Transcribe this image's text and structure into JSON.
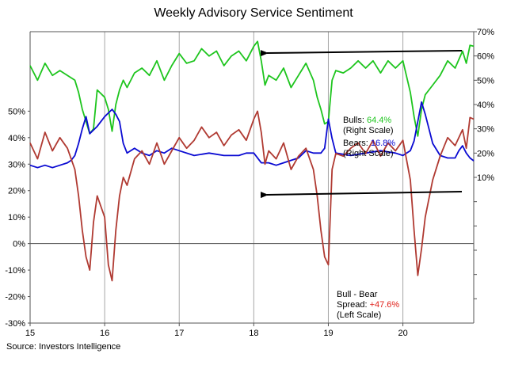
{
  "title": "Weekly Advisory Service Sentiment",
  "source": "Source: Investors Intelligence",
  "colors": {
    "bulls": "#1ec51e",
    "bears": "#0a0ad2",
    "spread": "#b03a32",
    "arrow": "#000000",
    "grid": "#a6a6a6"
  },
  "annotations": {
    "bulls_label": "Bulls: ",
    "bulls_value": "64.4%",
    "bulls_scale": "(Right Scale)",
    "bears_label": "Bears: ",
    "bears_value": "16.8%",
    "bears_scale": "(Right Scale)",
    "spread_label": "Bull - Bear",
    "spread_prefix": "Spread: ",
    "spread_value": "+47.6%",
    "spread_scale": "(Left Scale)"
  },
  "chart_data": {
    "type": "line",
    "x_ticks": [
      "15",
      "16",
      "17",
      "18",
      "19",
      "20"
    ],
    "xlim": [
      2015,
      2020.95
    ],
    "right_axis": {
      "ylim": [
        -50,
        70
      ],
      "ticks": [
        "10%",
        "20%",
        "30%",
        "40%",
        "50%",
        "60%",
        "70%"
      ],
      "tick_values": [
        10,
        20,
        30,
        40,
        50,
        60,
        70
      ]
    },
    "left_axis": {
      "ylim": [
        -30,
        80
      ],
      "ticks": [
        "-30%",
        "-20%",
        "-10%",
        "0%",
        "10%",
        "20%",
        "30%",
        "40%",
        "50%"
      ],
      "tick_values": [
        -30,
        -20,
        -10,
        0,
        10,
        20,
        30,
        40,
        50
      ]
    },
    "series": [
      {
        "name": "Bulls",
        "axis": "right",
        "x": [
          2015.0,
          2015.1,
          2015.2,
          2015.3,
          2015.4,
          2015.5,
          2015.6,
          2015.65,
          2015.7,
          2015.8,
          2015.85,
          2015.9,
          2016.0,
          2016.05,
          2016.1,
          2016.15,
          2016.2,
          2016.25,
          2016.3,
          2016.4,
          2016.5,
          2016.6,
          2016.7,
          2016.8,
          2016.9,
          2017.0,
          2017.1,
          2017.2,
          2017.3,
          2017.4,
          2017.5,
          2017.6,
          2017.7,
          2017.8,
          2017.9,
          2018.0,
          2018.05,
          2018.1,
          2018.15,
          2018.2,
          2018.3,
          2018.4,
          2018.5,
          2018.6,
          2018.7,
          2018.8,
          2018.85,
          2018.9,
          2018.95,
          2019.0,
          2019.05,
          2019.1,
          2019.2,
          2019.3,
          2019.4,
          2019.5,
          2019.6,
          2019.7,
          2019.8,
          2019.9,
          2020.0,
          2020.1,
          2020.15,
          2020.2,
          2020.25,
          2020.3,
          2020.4,
          2020.5,
          2020.6,
          2020.7,
          2020.8,
          2020.85,
          2020.9,
          2020.95
        ],
        "values": [
          56,
          50,
          57,
          52,
          54,
          52,
          50,
          45,
          38,
          28,
          30,
          46,
          43,
          38,
          29,
          40,
          46,
          50,
          47,
          53,
          55,
          52,
          58,
          50,
          56,
          61,
          57,
          58,
          63,
          60,
          62,
          56,
          60,
          62,
          58,
          64,
          66,
          58,
          48,
          52,
          50,
          55,
          47,
          52,
          57,
          50,
          43,
          38,
          32,
          33,
          50,
          54,
          53,
          55,
          58,
          55,
          58,
          53,
          58,
          55,
          58,
          45,
          35,
          27,
          38,
          44,
          48,
          52,
          58,
          55,
          62,
          57,
          64.4,
          64
        ]
      },
      {
        "name": "Bears",
        "axis": "right",
        "x": [
          2015.0,
          2015.1,
          2015.2,
          2015.3,
          2015.4,
          2015.5,
          2015.55,
          2015.6,
          2015.65,
          2015.7,
          2015.75,
          2015.8,
          2015.9,
          2016.0,
          2016.1,
          2016.15,
          2016.2,
          2016.25,
          2016.3,
          2016.35,
          2016.4,
          2016.5,
          2016.6,
          2016.7,
          2016.8,
          2016.9,
          2017.0,
          2017.2,
          2017.4,
          2017.6,
          2017.8,
          2017.9,
          2018.0,
          2018.1,
          2018.2,
          2018.3,
          2018.4,
          2018.5,
          2018.6,
          2018.7,
          2018.8,
          2018.9,
          2018.95,
          2019.0,
          2019.05,
          2019.1,
          2019.3,
          2019.5,
          2019.7,
          2019.9,
          2020.0,
          2020.1,
          2020.15,
          2020.2,
          2020.25,
          2020.3,
          2020.35,
          2020.4,
          2020.5,
          2020.6,
          2020.7,
          2020.75,
          2020.8,
          2020.85,
          2020.9,
          2020.95
        ],
        "values": [
          15,
          14,
          15,
          14,
          15,
          16,
          17,
          19,
          24,
          30,
          35,
          28,
          31,
          35,
          38,
          36,
          33,
          24,
          20,
          21,
          22,
          20,
          19,
          21,
          20,
          22,
          21,
          19,
          20,
          19,
          19,
          20,
          20,
          16,
          16,
          15,
          16,
          17,
          18,
          21,
          20,
          20,
          22,
          34,
          26,
          20,
          19,
          20,
          21,
          20,
          19,
          21,
          25,
          33,
          41,
          36,
          30,
          24,
          19,
          18,
          18,
          21,
          23,
          20,
          18,
          16.8
        ]
      },
      {
        "name": "Bull - Bear Spread",
        "axis": "left",
        "x": [
          2015.0,
          2015.1,
          2015.2,
          2015.3,
          2015.4,
          2015.5,
          2015.6,
          2015.65,
          2015.7,
          2015.75,
          2015.8,
          2015.85,
          2015.9,
          2016.0,
          2016.05,
          2016.1,
          2016.15,
          2016.2,
          2016.25,
          2016.3,
          2016.4,
          2016.5,
          2016.6,
          2016.7,
          2016.8,
          2016.9,
          2017.0,
          2017.1,
          2017.2,
          2017.3,
          2017.4,
          2017.5,
          2017.6,
          2017.7,
          2017.8,
          2017.9,
          2018.0,
          2018.05,
          2018.1,
          2018.15,
          2018.2,
          2018.3,
          2018.4,
          2018.5,
          2018.6,
          2018.7,
          2018.8,
          2018.85,
          2018.9,
          2018.95,
          2019.0,
          2019.05,
          2019.1,
          2019.2,
          2019.3,
          2019.4,
          2019.5,
          2019.6,
          2019.7,
          2019.8,
          2019.9,
          2020.0,
          2020.1,
          2020.15,
          2020.2,
          2020.25,
          2020.3,
          2020.4,
          2020.5,
          2020.6,
          2020.7,
          2020.8,
          2020.85,
          2020.9,
          2020.95
        ],
        "values": [
          38,
          32,
          42,
          35,
          40,
          36,
          28,
          18,
          5,
          -5,
          -10,
          8,
          18,
          10,
          -8,
          -14,
          5,
          18,
          25,
          22,
          32,
          35,
          30,
          38,
          30,
          35,
          40,
          36,
          39,
          44,
          40,
          42,
          37,
          41,
          43,
          39,
          47,
          50,
          42,
          30,
          35,
          32,
          38,
          28,
          33,
          36,
          28,
          18,
          5,
          -5,
          -8,
          28,
          34,
          33,
          36,
          38,
          34,
          39,
          33,
          38,
          35,
          39,
          24,
          5,
          -12,
          -2,
          10,
          24,
          33,
          40,
          37,
          43,
          36,
          47.6,
          47
        ]
      }
    ]
  }
}
